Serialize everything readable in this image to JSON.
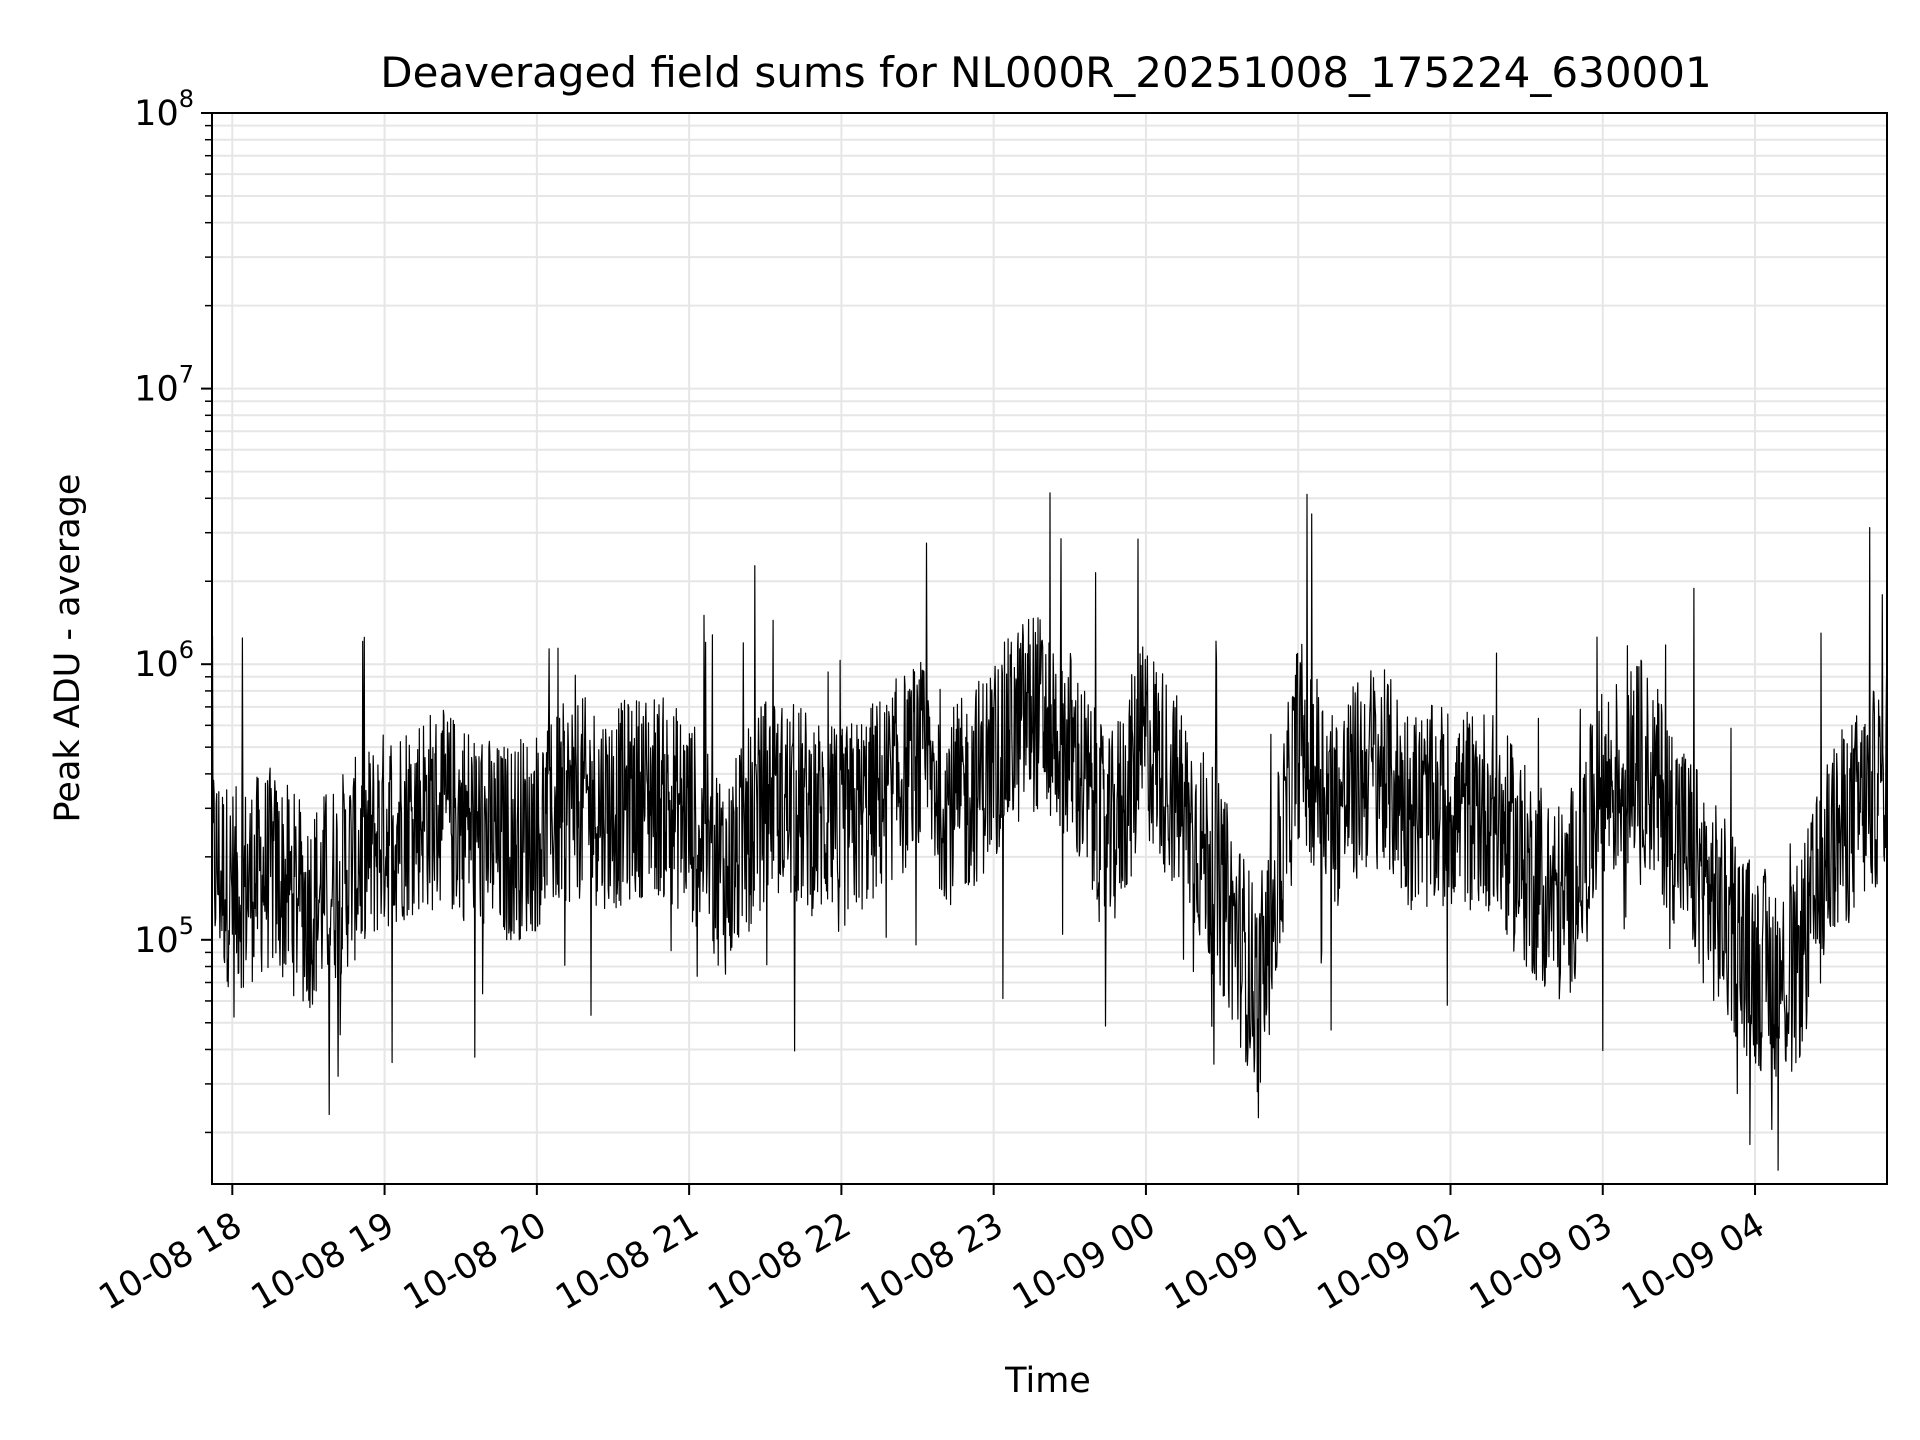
{
  "chart_data": {
    "type": "line",
    "title": "Deaveraged field sums for NL000R_20251008_175224_630001",
    "xlabel": "Time",
    "ylabel": "Peak ADU - average",
    "x_range": [
      "2025-10-08 17:52",
      "2025-10-09 04:52"
    ],
    "y_scale": "log",
    "ylim": [
      13000,
      100000000
    ],
    "grid": true,
    "x_ticks": [
      "10-08 18",
      "10-08 19",
      "10-08 20",
      "10-08 21",
      "10-08 22",
      "10-08 23",
      "10-09 00",
      "10-09 01",
      "10-09 02",
      "10-09 03",
      "10-09 04"
    ],
    "x_tick_times": [
      "2025-10-08 18:00",
      "2025-10-08 19:00",
      "2025-10-08 20:00",
      "2025-10-08 21:00",
      "2025-10-08 22:00",
      "2025-10-08 23:00",
      "2025-10-09 00:00",
      "2025-10-09 01:00",
      "2025-10-09 02:00",
      "2025-10-09 03:00",
      "2025-10-09 04:00"
    ],
    "y_ticks": [
      {
        "value": 100000,
        "base": "10",
        "exp": "5"
      },
      {
        "value": 1000000,
        "base": "10",
        "exp": "6"
      },
      {
        "value": 10000000,
        "base": "10",
        "exp": "7"
      },
      {
        "value": 100000000,
        "base": "10",
        "exp": "8"
      }
    ],
    "series": [
      {
        "color": "#000000",
        "points": [
          [
            "2025-10-08 17:52",
            200000
          ],
          [
            "2025-10-08 18:00",
            150000
          ],
          [
            "2025-10-08 18:15",
            180000
          ],
          [
            "2025-10-08 18:30",
            130000
          ],
          [
            "2025-10-08 18:45",
            180000
          ],
          [
            "2025-10-08 19:00",
            250000
          ],
          [
            "2025-10-08 19:15",
            300000
          ],
          [
            "2025-10-08 19:30",
            280000
          ],
          [
            "2025-10-08 19:45",
            220000
          ],
          [
            "2025-10-08 20:00",
            250000
          ],
          [
            "2025-10-08 20:15",
            330000
          ],
          [
            "2025-10-08 20:30",
            300000
          ],
          [
            "2025-10-08 20:45",
            350000
          ],
          [
            "2025-10-08 21:00",
            280000
          ],
          [
            "2025-10-08 21:15",
            170000
          ],
          [
            "2025-10-08 21:30",
            330000
          ],
          [
            "2025-10-08 21:45",
            300000
          ],
          [
            "2025-10-08 22:00",
            250000
          ],
          [
            "2025-10-08 22:15",
            330000
          ],
          [
            "2025-10-08 22:30",
            450000
          ],
          [
            "2025-10-08 22:45",
            300000
          ],
          [
            "2025-10-08 23:00",
            450000
          ],
          [
            "2025-10-08 23:15",
            700000
          ],
          [
            "2025-10-08 23:30",
            500000
          ],
          [
            "2025-10-08 23:45",
            220000
          ],
          [
            "2025-10-09 00:00",
            550000
          ],
          [
            "2025-10-09 00:15",
            300000
          ],
          [
            "2025-10-09 00:30",
            150000
          ],
          [
            "2025-10-09 00:45",
            60000
          ],
          [
            "2025-10-09 01:00",
            550000
          ],
          [
            "2025-10-09 01:15",
            300000
          ],
          [
            "2025-10-09 01:30",
            450000
          ],
          [
            "2025-10-09 01:45",
            300000
          ],
          [
            "2025-10-09 02:00",
            300000
          ],
          [
            "2025-10-09 02:15",
            300000
          ],
          [
            "2025-10-09 02:30",
            180000
          ],
          [
            "2025-10-09 02:45",
            130000
          ],
          [
            "2025-10-09 03:00",
            350000
          ],
          [
            "2025-10-09 03:15",
            450000
          ],
          [
            "2025-10-09 03:30",
            250000
          ],
          [
            "2025-10-09 03:45",
            130000
          ],
          [
            "2025-10-09 04:00",
            80000
          ],
          [
            "2025-10-09 04:15",
            70000
          ],
          [
            "2025-10-09 04:30",
            220000
          ],
          [
            "2025-10-09 04:52",
            400000
          ]
        ]
      }
    ]
  }
}
